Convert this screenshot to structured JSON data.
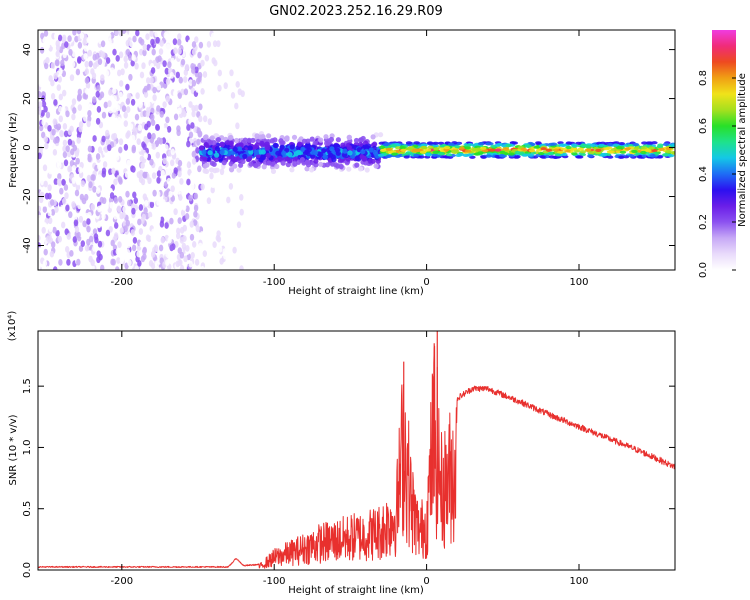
{
  "figure_title": "GN02.2023.252.16.29.R09",
  "colors": {
    "snr_line": "#e8302e",
    "spectral_cmap": [
      "#ffffff",
      "#e9dbfb",
      "#c7a9f6",
      "#8c52f0",
      "#6a1ee8",
      "#2c10f0",
      "#1e6cf5",
      "#14c8e6",
      "#1ee28c",
      "#28e028",
      "#a6e01e",
      "#f0e21a",
      "#f0a014",
      "#ee4a20",
      "#f02c78",
      "#f03ce0"
    ]
  },
  "chart_data": [
    {
      "type": "heatmap",
      "name": "spectrogram",
      "title": "",
      "xlabel": "Height of straight line (km)",
      "ylabel": "Frequency (Hz)",
      "xlim": [
        -255,
        163
      ],
      "ylim": [
        -50,
        48
      ],
      "xticks": [
        -200,
        -100,
        0,
        100
      ],
      "xtick_labels": [
        "-200",
        "-100",
        "0",
        "100"
      ],
      "yticks": [
        -40,
        -20,
        0,
        20,
        40
      ],
      "ytick_labels": [
        "-40",
        "-20",
        "0",
        "20",
        "40"
      ],
      "colorbar": {
        "label": "Normalized spectral amplitude",
        "range": [
          0,
          1
        ],
        "ticks": [
          0.0,
          0.2,
          0.4,
          0.6,
          0.8
        ],
        "tick_labels": [
          "0.0",
          "0.2",
          "0.4",
          "0.6",
          "0.8"
        ]
      },
      "regions": [
        {
          "name": "noise",
          "x_range": [
            -255,
            -148
          ],
          "freq_range": [
            -50,
            48
          ],
          "amplitude_range": [
            0.0,
            0.2
          ]
        },
        {
          "name": "sparse-noise",
          "x_range": [
            -148,
            -120
          ],
          "freq_range": [
            -50,
            48
          ],
          "amplitude_range": [
            0.0,
            0.1
          ]
        },
        {
          "name": "chaotic-band",
          "x_range": [
            -148,
            -30
          ],
          "freq_center": -2,
          "freq_halfwidth": 8,
          "amplitude_range": [
            0.05,
            0.5
          ]
        },
        {
          "name": "steady-band",
          "x_range": [
            -30,
            163
          ],
          "freq_center": -1,
          "freq_halfwidth": 3,
          "amplitude_range": [
            0.3,
            0.95
          ]
        }
      ]
    },
    {
      "type": "line",
      "name": "snr",
      "title": "",
      "xlabel": "Height of straight line (km)",
      "ylabel": "SNR (10 * v/v)",
      "y_scale_label": "(x10⁴)",
      "xlim": [
        -255,
        163
      ],
      "ylim": [
        0,
        1.95
      ],
      "xticks": [
        -200,
        -100,
        0,
        100
      ],
      "xtick_labels": [
        "-200",
        "-100",
        "0",
        "100"
      ],
      "yticks": [
        0.0,
        0.5,
        1.0,
        1.5
      ],
      "ytick_labels": [
        "0.0",
        "0.5",
        "1.0",
        "1.5"
      ],
      "series": [
        {
          "name": "SNR",
          "x": [
            -255,
            -200,
            -150,
            -130,
            -125,
            -120,
            -110,
            -100,
            -90,
            -80,
            -70,
            -60,
            -50,
            -40,
            -30,
            -20,
            -15,
            -10,
            -5,
            0,
            5,
            10,
            15,
            20,
            30,
            40,
            60,
            80,
            100,
            120,
            140,
            163
          ],
          "values": [
            0.02,
            0.02,
            0.02,
            0.02,
            0.09,
            0.03,
            0.04,
            0.16,
            0.22,
            0.28,
            0.35,
            0.38,
            0.42,
            0.45,
            0.5,
            0.7,
            1.7,
            0.85,
            0.5,
            0.6,
            1.85,
            1.0,
            1.2,
            1.4,
            1.48,
            1.48,
            1.38,
            1.27,
            1.17,
            1.07,
            0.97,
            0.84
          ]
        }
      ]
    }
  ]
}
